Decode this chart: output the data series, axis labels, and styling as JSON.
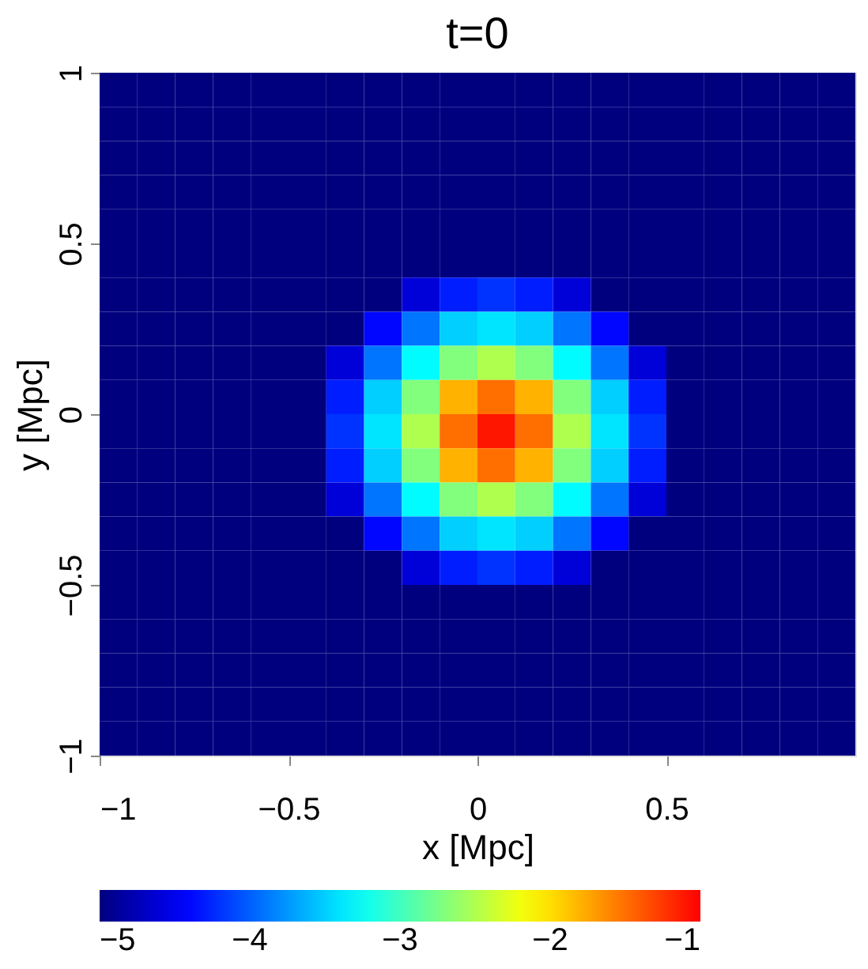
{
  "chart_data": {
    "type": "heatmap",
    "title": "t=0",
    "xlabel": "x [Mpc]",
    "ylabel": "y [Mpc]",
    "x": [
      -0.95,
      -0.85,
      -0.75,
      -0.65,
      -0.55,
      -0.45,
      -0.35,
      -0.25,
      -0.15,
      -0.05,
      0.05,
      0.15,
      0.25,
      0.35,
      0.45,
      0.55,
      0.65,
      0.75,
      0.85,
      0.95
    ],
    "y": [
      0.95,
      0.85,
      0.75,
      0.65,
      0.55,
      0.45,
      0.35,
      0.25,
      0.15,
      0.05,
      -0.05,
      -0.15,
      -0.25,
      -0.35,
      -0.45,
      -0.55,
      -0.65,
      -0.75,
      -0.85,
      -0.95
    ],
    "cells": [
      [
        -5,
        -5,
        -5,
        -5,
        -5,
        -5,
        -5,
        -5,
        -5,
        -5,
        -5,
        -5,
        -5,
        -5,
        -5,
        -5,
        -5,
        -5,
        -5,
        -5
      ],
      [
        -5,
        -5,
        -5,
        -5,
        -5,
        -5,
        -5,
        -5,
        -5,
        -5,
        -5,
        -5,
        -5,
        -5,
        -5,
        -5,
        -5,
        -5,
        -5,
        -5
      ],
      [
        -5,
        -5,
        -5,
        -5,
        -5,
        -5,
        -5,
        -5,
        -5,
        -5,
        -5,
        -5,
        -5,
        -5,
        -5,
        -5,
        -5,
        -5,
        -5,
        -5
      ],
      [
        -5,
        -5,
        -5,
        -5,
        -5,
        -5,
        -5,
        -5,
        -5,
        -5,
        -5,
        -5,
        -5,
        -5,
        -5,
        -5,
        -5,
        -5,
        -5,
        -5
      ],
      [
        -5,
        -5,
        -5,
        -5,
        -5,
        -5,
        -5,
        -5,
        -5,
        -5,
        -5,
        -5,
        -5,
        -5,
        -5,
        -5,
        -5,
        -5,
        -5,
        -5
      ],
      [
        -5,
        -5,
        -5,
        -5,
        -5,
        -5,
        -5,
        -5,
        -5,
        -5,
        -5,
        -5,
        -5,
        -5,
        -5,
        -5,
        -5,
        -5,
        -5,
        -5
      ],
      [
        -5,
        -5,
        -5,
        -5,
        -5,
        -5,
        -5,
        -5,
        -4.6,
        -4.3,
        -4.2,
        -4.3,
        -4.6,
        -5,
        -5,
        -5,
        -5,
        -5,
        -5,
        -5
      ],
      [
        -5,
        -5,
        -5,
        -5,
        -5,
        -5,
        -5,
        -4.4,
        -3.9,
        -3.5,
        -3.4,
        -3.5,
        -3.9,
        -4.4,
        -5,
        -5,
        -5,
        -5,
        -5,
        -5
      ],
      [
        -5,
        -5,
        -5,
        -5,
        -5,
        -5,
        -4.6,
        -3.9,
        -3.3,
        -2.7,
        -2.5,
        -2.7,
        -3.3,
        -3.9,
        -4.6,
        -5,
        -5,
        -5,
        -5,
        -5
      ],
      [
        -5,
        -5,
        -5,
        -5,
        -5,
        -5,
        -4.3,
        -3.5,
        -2.7,
        -1.8,
        -1.5,
        -1.8,
        -2.7,
        -3.5,
        -4.3,
        -5,
        -5,
        -5,
        -5,
        -5
      ],
      [
        -5,
        -5,
        -5,
        -5,
        -5,
        -5,
        -4.2,
        -3.4,
        -2.5,
        -1.5,
        -1.1,
        -1.5,
        -2.5,
        -3.4,
        -4.2,
        -5,
        -5,
        -5,
        -5,
        -5
      ],
      [
        -5,
        -5,
        -5,
        -5,
        -5,
        -5,
        -4.3,
        -3.5,
        -2.7,
        -1.8,
        -1.5,
        -1.8,
        -2.7,
        -3.5,
        -4.3,
        -5,
        -5,
        -5,
        -5,
        -5
      ],
      [
        -5,
        -5,
        -5,
        -5,
        -5,
        -5,
        -4.6,
        -3.9,
        -3.3,
        -2.7,
        -2.5,
        -2.7,
        -3.3,
        -3.9,
        -4.6,
        -5,
        -5,
        -5,
        -5,
        -5
      ],
      [
        -5,
        -5,
        -5,
        -5,
        -5,
        -5,
        -5,
        -4.4,
        -3.9,
        -3.5,
        -3.4,
        -3.5,
        -3.9,
        -4.4,
        -5,
        -5,
        -5,
        -5,
        -5,
        -5
      ],
      [
        -5,
        -5,
        -5,
        -5,
        -5,
        -5,
        -5,
        -5,
        -4.6,
        -4.3,
        -4.2,
        -4.3,
        -4.6,
        -5,
        -5,
        -5,
        -5,
        -5,
        -5,
        -5
      ],
      [
        -5,
        -5,
        -5,
        -5,
        -5,
        -5,
        -5,
        -5,
        -5,
        -5,
        -5,
        -5,
        -5,
        -5,
        -5,
        -5,
        -5,
        -5,
        -5,
        -5
      ],
      [
        -5,
        -5,
        -5,
        -5,
        -5,
        -5,
        -5,
        -5,
        -5,
        -5,
        -5,
        -5,
        -5,
        -5,
        -5,
        -5,
        -5,
        -5,
        -5,
        -5
      ],
      [
        -5,
        -5,
        -5,
        -5,
        -5,
        -5,
        -5,
        -5,
        -5,
        -5,
        -5,
        -5,
        -5,
        -5,
        -5,
        -5,
        -5,
        -5,
        -5,
        -5
      ],
      [
        -5,
        -5,
        -5,
        -5,
        -5,
        -5,
        -5,
        -5,
        -5,
        -5,
        -5,
        -5,
        -5,
        -5,
        -5,
        -5,
        -5,
        -5,
        -5,
        -5
      ],
      [
        -5,
        -5,
        -5,
        -5,
        -5,
        -5,
        -5,
        -5,
        -5,
        -5,
        -5,
        -5,
        -5,
        -5,
        -5,
        -5,
        -5,
        -5,
        -5,
        -5
      ]
    ],
    "xlim": [
      -1,
      1
    ],
    "xticks": [
      -1,
      -0.5,
      0,
      0.5
    ],
    "ylim": [
      -1,
      1
    ],
    "yticks": [
      -1,
      -0.5,
      0,
      0.5,
      1
    ],
    "clim": [
      -5,
      -1
    ],
    "cticks": [
      -5,
      -4,
      -3,
      -2,
      -1
    ],
    "colors": [
      "#00007f",
      "#0000ff",
      "#007fff",
      "#00ffff",
      "#7fff7f",
      "#ffff00",
      "#ff7f00",
      "#ff0000"
    ]
  }
}
